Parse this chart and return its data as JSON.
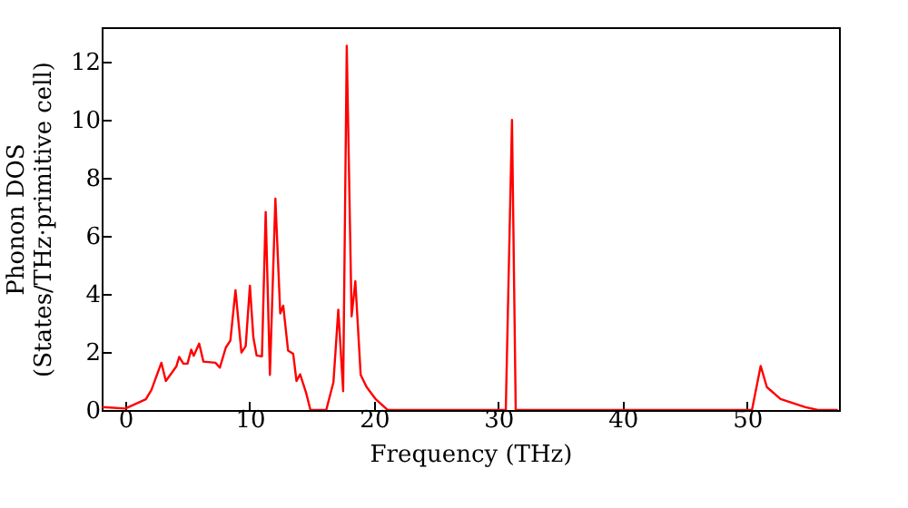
{
  "chart_data": {
    "type": "line",
    "xlabel": "Frequency (THz)",
    "ylabel": "Phonon DOS\n(States/THz·primitive cell)",
    "xlim": [
      -1.9,
      57.4
    ],
    "ylim": [
      0,
      13.2
    ],
    "xticks": [
      0,
      10,
      20,
      30,
      40,
      50
    ],
    "yticks": [
      0,
      2,
      4,
      6,
      8,
      10,
      12
    ],
    "grid": false,
    "series": [
      {
        "color": "#ff0000",
        "x": [
          -1.85,
          0,
          1.65,
          2.1,
          2.9,
          3.26,
          4.1,
          4.33,
          4.67,
          5.0,
          5.3,
          5.5,
          5.94,
          6.28,
          7.25,
          7.6,
          8.08,
          8.45,
          8.86,
          9.34,
          9.68,
          10.02,
          10.3,
          10.56,
          10.99,
          11.29,
          11.63,
          12.07,
          12.46,
          12.7,
          13.09,
          13.5,
          13.77,
          14.06,
          14.55,
          14.89,
          16.16,
          16.74,
          17.13,
          17.52,
          17.81,
          18.2,
          18.5,
          18.93,
          19.4,
          20.15,
          21.1,
          30.6,
          31.1,
          31.4,
          50.4,
          51.1,
          51.6,
          52.7,
          54.7,
          55.7,
          57.3
        ],
        "values": [
          0.1,
          0.05,
          0.37,
          0.69,
          1.63,
          1.0,
          1.5,
          1.83,
          1.6,
          1.6,
          2.08,
          1.87,
          2.29,
          1.67,
          1.63,
          1.46,
          2.15,
          2.4,
          4.13,
          1.98,
          2.2,
          4.29,
          2.5,
          1.88,
          1.85,
          6.83,
          1.21,
          7.29,
          3.33,
          3.6,
          2.05,
          1.94,
          1.0,
          1.23,
          0.58,
          0,
          0,
          0.96,
          3.46,
          0.65,
          12.56,
          3.23,
          4.44,
          1.21,
          0.8,
          0.37,
          0,
          0,
          10.0,
          0,
          0,
          1.52,
          0.79,
          0.38,
          0.1,
          0,
          0
        ]
      }
    ]
  }
}
